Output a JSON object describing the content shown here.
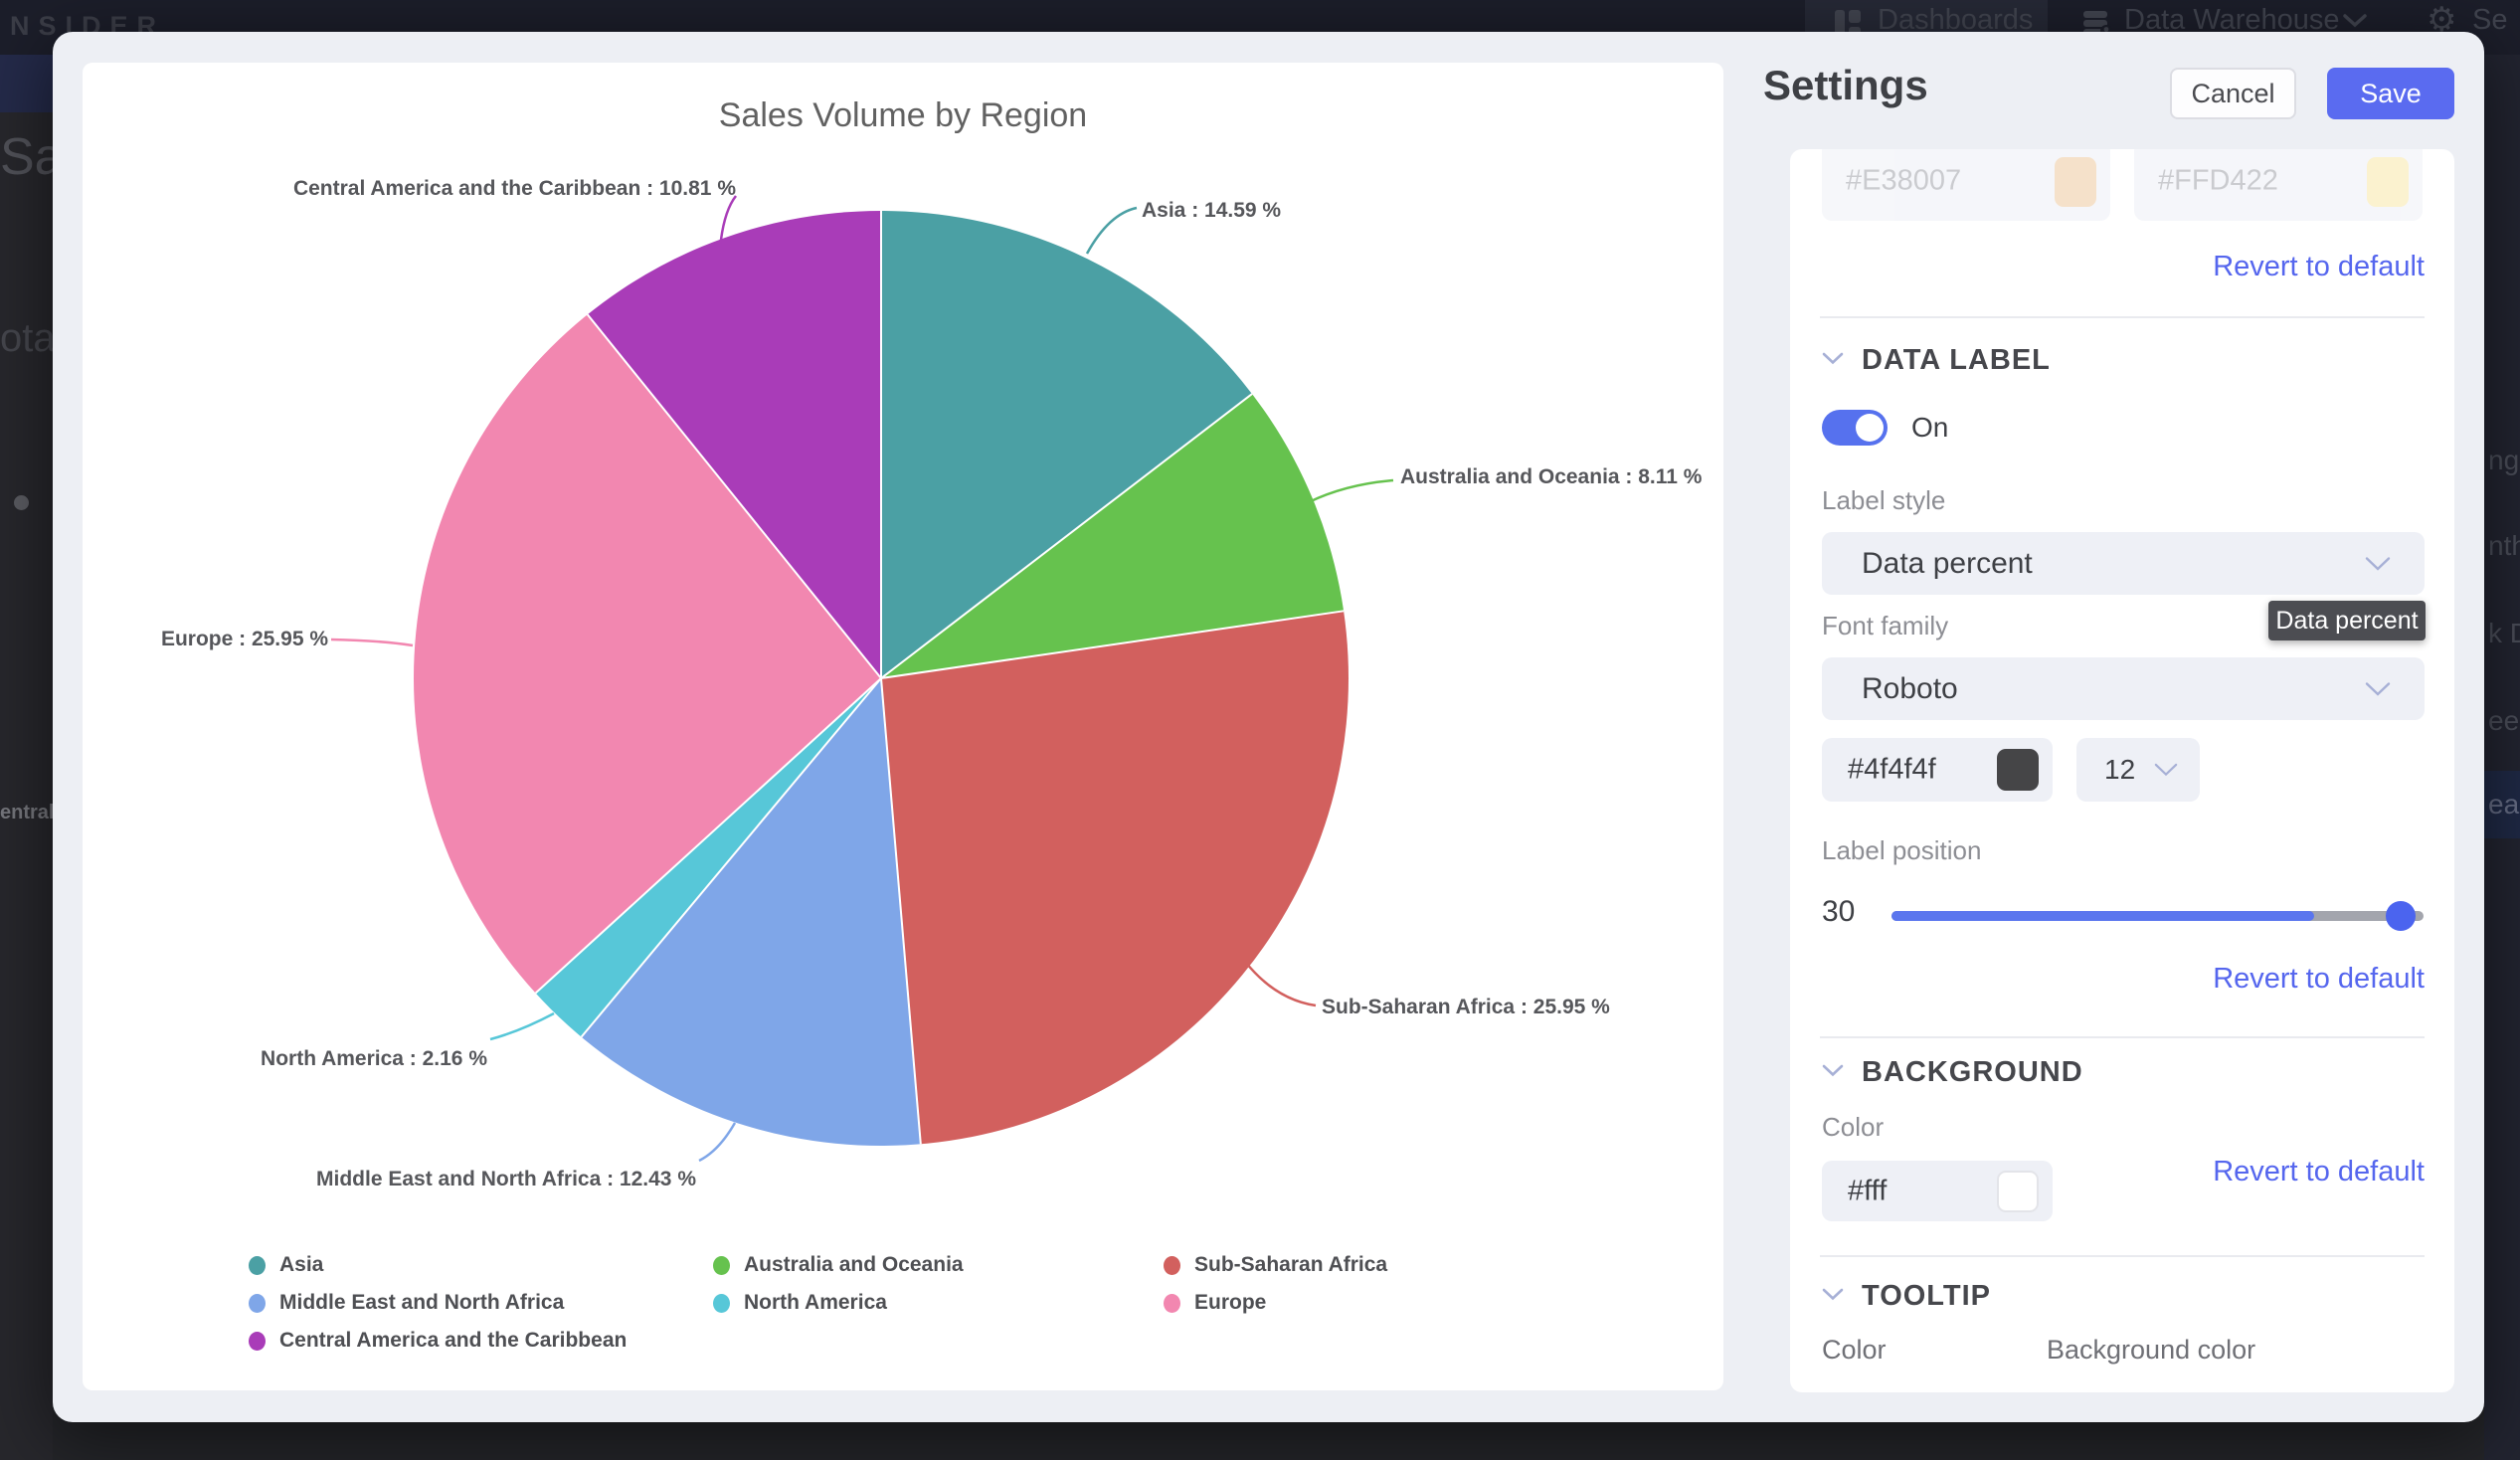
{
  "nav": {
    "logo": "NSIDER",
    "dashboards_label": "Dashboards",
    "data_warehouse_label": "Data Warehouse",
    "settings_label_cut": "Se"
  },
  "underlay": {
    "left_fragments": {
      "heading": "Sal",
      "subheading": "ota",
      "small_label": "entral"
    },
    "right_fragments": {
      "item1": "nge",
      "item2": "nth",
      "item3": "k D",
      "item4": "eek",
      "item5": "ear"
    }
  },
  "chart_data": {
    "type": "pie",
    "title": "Sales Volume by Region",
    "unit": "%",
    "legend_position": "bottom",
    "label_format": "name : percent %",
    "series": [
      {
        "name": "Asia",
        "value": 14.59,
        "color": "#4ba0a4"
      },
      {
        "name": "Australia and Oceania",
        "value": 8.11,
        "color": "#66c24e"
      },
      {
        "name": "Sub-Saharan Africa",
        "value": 25.95,
        "color": "#d2605e"
      },
      {
        "name": "Middle East and North Africa",
        "value": 12.43,
        "color": "#7fa6e8"
      },
      {
        "name": "North America",
        "value": 2.16,
        "color": "#57c7d8"
      },
      {
        "name": "Europe",
        "value": 25.95,
        "color": "#f287b0"
      },
      {
        "name": "Central America and the Caribbean",
        "value": 10.81,
        "color": "#a93cb8"
      }
    ]
  },
  "settings": {
    "title": "Settings",
    "cancel_label": "Cancel",
    "save_label": "Save",
    "revert_label": "Revert to default",
    "scrolled_colors": {
      "color1": {
        "value": "#E38007",
        "swatch": "#eec9a0"
      },
      "color2": {
        "value": "#FFD422",
        "swatch": "#f8e8a9"
      }
    },
    "data_label_section": {
      "title": "DATA LABEL",
      "toggle_state": "On",
      "label_style_label": "Label style",
      "label_style_value": "Data percent",
      "tooltip_text": "Data percent",
      "font_family_label": "Font family",
      "font_family_value": "Roboto",
      "font_color_value": "#4f4f4f",
      "font_color_swatch": "#454547",
      "font_size_value": "12",
      "label_position_label": "Label position",
      "label_position_value": "30"
    },
    "background_section": {
      "title": "BACKGROUND",
      "color_label": "Color",
      "color_value": "#fff",
      "color_swatch": "#ffffff"
    },
    "tooltip_section": {
      "title": "TOOLTIP",
      "color_label": "Color",
      "background_color_label": "Background color"
    },
    "colors": {
      "accent": "#5a6bf0",
      "link": "#5566ee",
      "slider_fill": "#5b76ee"
    }
  }
}
